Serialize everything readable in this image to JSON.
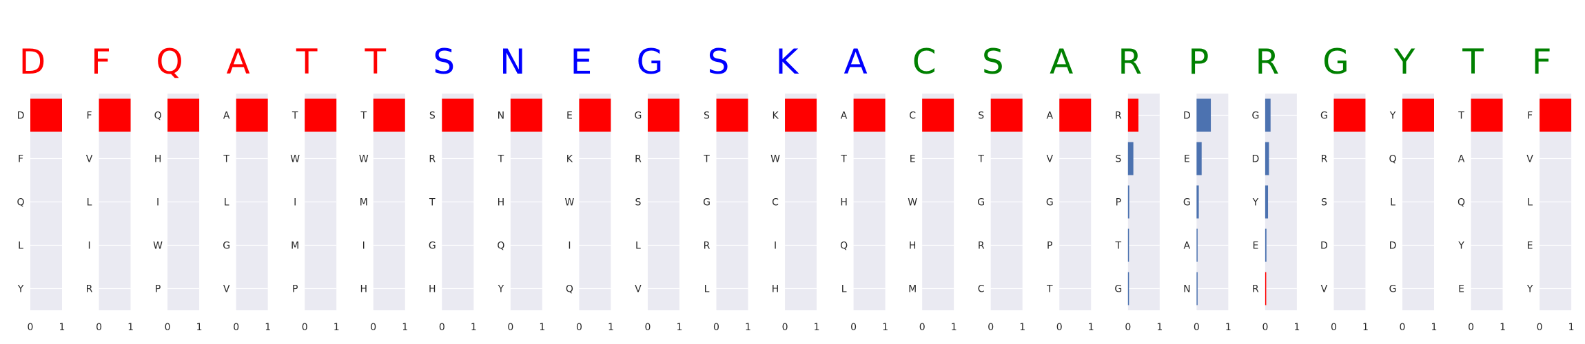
{
  "chart_data": {
    "type": "bar",
    "orientation": "horizontal",
    "xlim": [
      0,
      1
    ],
    "xticks": [
      "0",
      "1"
    ],
    "grid": true,
    "colors": {
      "red": "#ff0000",
      "blue": "#0000ff",
      "green": "#008000",
      "steel": "#4c72b0",
      "panel_bg": "#eaeaf2",
      "grid": "#ffffff"
    },
    "panels": [
      {
        "letter": "D",
        "letter_color": "red",
        "categories": [
          "D",
          "F",
          "Q",
          "L",
          "Y"
        ],
        "values": [
          1.0,
          0.0,
          0.0,
          0.0,
          0.0
        ],
        "bar_color": "red"
      },
      {
        "letter": "F",
        "letter_color": "red",
        "categories": [
          "F",
          "V",
          "L",
          "I",
          "R"
        ],
        "values": [
          1.0,
          0.0,
          0.0,
          0.0,
          0.0
        ],
        "bar_color": "red"
      },
      {
        "letter": "Q",
        "letter_color": "red",
        "categories": [
          "Q",
          "H",
          "I",
          "W",
          "P"
        ],
        "values": [
          1.0,
          0.0,
          0.0,
          0.0,
          0.0
        ],
        "bar_color": "red"
      },
      {
        "letter": "A",
        "letter_color": "red",
        "categories": [
          "A",
          "T",
          "L",
          "G",
          "V"
        ],
        "values": [
          1.0,
          0.0,
          0.0,
          0.0,
          0.0
        ],
        "bar_color": "red"
      },
      {
        "letter": "T",
        "letter_color": "red",
        "categories": [
          "T",
          "W",
          "I",
          "M",
          "P"
        ],
        "values": [
          1.0,
          0.0,
          0.0,
          0.0,
          0.0
        ],
        "bar_color": "red"
      },
      {
        "letter": "T",
        "letter_color": "red",
        "categories": [
          "T",
          "W",
          "M",
          "I",
          "H"
        ],
        "values": [
          1.0,
          0.0,
          0.0,
          0.0,
          0.0
        ],
        "bar_color": "red"
      },
      {
        "letter": "S",
        "letter_color": "blue",
        "categories": [
          "S",
          "R",
          "T",
          "G",
          "H"
        ],
        "values": [
          1.0,
          0.0,
          0.0,
          0.0,
          0.0
        ],
        "bar_color": "red"
      },
      {
        "letter": "N",
        "letter_color": "blue",
        "categories": [
          "N",
          "T",
          "H",
          "Q",
          "Y"
        ],
        "values": [
          1.0,
          0.0,
          0.0,
          0.0,
          0.0
        ],
        "bar_color": "red"
      },
      {
        "letter": "E",
        "letter_color": "blue",
        "categories": [
          "E",
          "K",
          "W",
          "I",
          "Q"
        ],
        "values": [
          1.0,
          0.0,
          0.0,
          0.0,
          0.0
        ],
        "bar_color": "red"
      },
      {
        "letter": "G",
        "letter_color": "blue",
        "categories": [
          "G",
          "R",
          "S",
          "L",
          "V"
        ],
        "values": [
          1.0,
          0.0,
          0.0,
          0.0,
          0.0
        ],
        "bar_color": "red"
      },
      {
        "letter": "S",
        "letter_color": "blue",
        "categories": [
          "S",
          "T",
          "G",
          "R",
          "L"
        ],
        "values": [
          1.0,
          0.0,
          0.0,
          0.0,
          0.0
        ],
        "bar_color": "red"
      },
      {
        "letter": "K",
        "letter_color": "blue",
        "categories": [
          "K",
          "W",
          "C",
          "I",
          "H"
        ],
        "values": [
          1.0,
          0.0,
          0.0,
          0.0,
          0.0
        ],
        "bar_color": "red"
      },
      {
        "letter": "A",
        "letter_color": "blue",
        "categories": [
          "A",
          "T",
          "H",
          "Q",
          "L"
        ],
        "values": [
          1.0,
          0.0,
          0.0,
          0.0,
          0.0
        ],
        "bar_color": "red"
      },
      {
        "letter": "C",
        "letter_color": "green",
        "categories": [
          "C",
          "E",
          "W",
          "H",
          "M"
        ],
        "values": [
          1.0,
          0.0,
          0.0,
          0.0,
          0.0
        ],
        "bar_color": "red"
      },
      {
        "letter": "S",
        "letter_color": "green",
        "categories": [
          "S",
          "T",
          "G",
          "R",
          "C"
        ],
        "values": [
          1.0,
          0.0,
          0.0,
          0.0,
          0.0
        ],
        "bar_color": "red"
      },
      {
        "letter": "A",
        "letter_color": "green",
        "categories": [
          "A",
          "V",
          "G",
          "P",
          "T"
        ],
        "values": [
          1.0,
          0.0,
          0.0,
          0.0,
          0.0
        ],
        "bar_color": "red"
      },
      {
        "letter": "R",
        "letter_color": "green",
        "categories": [
          "R",
          "S",
          "P",
          "T",
          "G"
        ],
        "values": [
          0.33,
          0.17,
          0.04,
          0.03,
          0.02
        ],
        "bar_color": [
          "red",
          "steel",
          "steel",
          "steel",
          "steel"
        ]
      },
      {
        "letter": "P",
        "letter_color": "green",
        "categories": [
          "D",
          "E",
          "G",
          "A",
          "N"
        ],
        "values": [
          0.45,
          0.16,
          0.07,
          0.03,
          0.02
        ],
        "bar_color": "steel"
      },
      {
        "letter": "R",
        "letter_color": "green",
        "categories": [
          "G",
          "D",
          "Y",
          "E",
          "R"
        ],
        "values": [
          0.17,
          0.12,
          0.09,
          0.04,
          0.03
        ],
        "bar_color": [
          "steel",
          "steel",
          "steel",
          "steel",
          "red"
        ]
      },
      {
        "letter": "G",
        "letter_color": "green",
        "categories": [
          "G",
          "R",
          "S",
          "D",
          "V"
        ],
        "values": [
          1.0,
          0.0,
          0.0,
          0.0,
          0.0
        ],
        "bar_color": "red"
      },
      {
        "letter": "Y",
        "letter_color": "green",
        "categories": [
          "Y",
          "Q",
          "L",
          "D",
          "G"
        ],
        "values": [
          1.0,
          0.0,
          0.0,
          0.0,
          0.0
        ],
        "bar_color": "red"
      },
      {
        "letter": "T",
        "letter_color": "green",
        "categories": [
          "T",
          "A",
          "Q",
          "Y",
          "E"
        ],
        "values": [
          1.0,
          0.0,
          0.0,
          0.0,
          0.0
        ],
        "bar_color": "red"
      },
      {
        "letter": "F",
        "letter_color": "green",
        "categories": [
          "F",
          "V",
          "L",
          "E",
          "Y"
        ],
        "values": [
          1.0,
          0.0,
          0.0,
          0.0,
          0.0
        ],
        "bar_color": "red"
      }
    ]
  }
}
